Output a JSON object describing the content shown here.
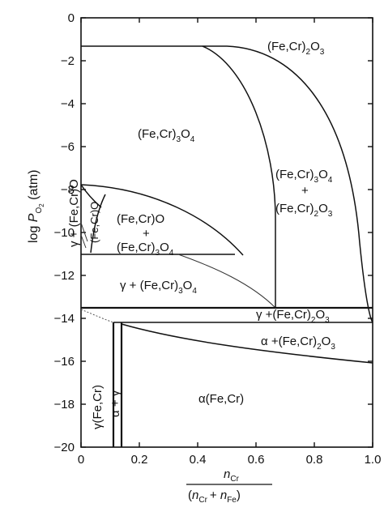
{
  "chart_data": {
    "type": "phase-diagram",
    "x_axis": {
      "label": "n_Cr / (n_Cr + n_Fe)",
      "numerator": {
        "base": "n",
        "sub": "Cr"
      },
      "denominator": {
        "open": "(",
        "n1": "n",
        "sub1": "Cr",
        "plus": "+ ",
        "n2": "n",
        "sub2": "Fe",
        "close": ")"
      },
      "range": [
        0,
        1.0
      ],
      "ticks": [
        "0",
        "0.2",
        "0.4",
        "0.6",
        "0.8",
        "1.0"
      ]
    },
    "y_axis": {
      "label": "log P_O2 (atm)",
      "label_parts": {
        "pre": "log ",
        "P": "P",
        "sub": "O",
        "subsub": "2",
        "post": " (atm)"
      },
      "range": [
        -20,
        0
      ],
      "ticks": [
        "0",
        "-2",
        "-4",
        "-6",
        "-8",
        "-10",
        "-12",
        "-14",
        "-16",
        "-18",
        "-20"
      ]
    },
    "regions": [
      {
        "id": "corundum",
        "parts": [
          {
            "t": "(Fe,Cr)"
          },
          {
            "t": "2",
            "sub": true
          },
          {
            "t": "O"
          },
          {
            "t": "3",
            "sub": true
          }
        ]
      },
      {
        "id": "spinel",
        "parts": [
          {
            "t": "(Fe,Cr)"
          },
          {
            "t": "3",
            "sub": true
          },
          {
            "t": "O"
          },
          {
            "t": "4",
            "sub": true
          }
        ]
      },
      {
        "id": "spinel-corundum-1",
        "parts": [
          {
            "t": "(Fe,Cr)"
          },
          {
            "t": "3",
            "sub": true
          },
          {
            "t": "O"
          },
          {
            "t": "4",
            "sub": true
          }
        ]
      },
      {
        "id": "spinel-corundum-plus",
        "parts": [
          {
            "t": "+"
          }
        ]
      },
      {
        "id": "spinel-corundum-2",
        "parts": [
          {
            "t": "(Fe,Cr)"
          },
          {
            "t": "2",
            "sub": true
          },
          {
            "t": "O"
          },
          {
            "t": "3",
            "sub": true
          }
        ]
      },
      {
        "id": "wustite-spinel-1",
        "parts": [
          {
            "t": "(Fe,Cr)O"
          }
        ]
      },
      {
        "id": "wustite-spinel-plus",
        "parts": [
          {
            "t": "+"
          }
        ]
      },
      {
        "id": "wustite-spinel-2",
        "parts": [
          {
            "t": "(Fe,Cr)"
          },
          {
            "t": "3",
            "sub": true
          },
          {
            "t": "O"
          },
          {
            "t": "4",
            "sub": true
          }
        ]
      },
      {
        "id": "wustite",
        "parts": [
          {
            "t": "(Fe,Cr)O"
          }
        ]
      },
      {
        "id": "gamma-wustite",
        "parts": [
          {
            "t": "γ + (Fe,Cr)O"
          }
        ]
      },
      {
        "id": "gamma-spinel",
        "parts": [
          {
            "t": "γ + (Fe,Cr)"
          },
          {
            "t": "3",
            "sub": true
          },
          {
            "t": "O"
          },
          {
            "t": "4",
            "sub": true
          }
        ]
      },
      {
        "id": "gamma-corundum",
        "parts": [
          {
            "t": "γ +(Fe,Cr)"
          },
          {
            "t": "2",
            "sub": true
          },
          {
            "t": "O"
          },
          {
            "t": "3",
            "sub": true
          }
        ]
      },
      {
        "id": "alpha-corundum",
        "parts": [
          {
            "t": "α +(Fe,Cr)"
          },
          {
            "t": "2",
            "sub": true
          },
          {
            "t": "O"
          },
          {
            "t": "3",
            "sub": true
          }
        ]
      },
      {
        "id": "gamma-fecr",
        "parts": [
          {
            "t": "γ(Fe,Cr)"
          }
        ]
      },
      {
        "id": "alpha-gamma",
        "parts": [
          {
            "t": "α + γ"
          }
        ]
      },
      {
        "id": "alpha-fecr",
        "parts": [
          {
            "t": "α(Fe,Cr)"
          }
        ]
      }
    ]
  }
}
